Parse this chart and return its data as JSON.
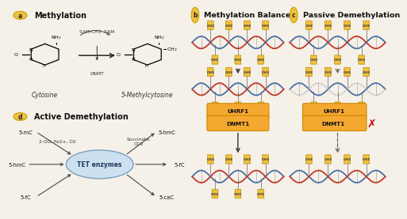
{
  "bg_color": "#f5f0e8",
  "dna_blue": "#4a6fa5",
  "dna_red": "#c0392b",
  "dna_gray": "#b8b8b8",
  "ch3_box_color": "#f0c040",
  "ch3_text": "CH3",
  "label_circle_color": "#f0c040",
  "label_circle_edge": "#c8a000",
  "orange_box_color": "#f5a830",
  "orange_box_edge": "#cc8800",
  "cross_color": "#cc0000",
  "panel_a_title": "Methylation",
  "panel_b_title": "Methylation Balance",
  "panel_c_title": "Passive Demethylation",
  "panel_d_title": "Active Demethylation",
  "cytosine_label": "Cytosine",
  "product_label": "5-Methylcytosine",
  "sam_label": "SAM-CH3  SAM",
  "dnmt_label": "DNMT",
  "tet_label": "TET enzymes",
  "inp_labels": [
    "5-mC",
    "5-hmC",
    "5-fC"
  ],
  "out_labels": [
    "5-hmC",
    "5-fC",
    "5-caC"
  ],
  "cofactor_left": "2-OG, Fe2+, O2",
  "cofactor_right": "Succinate,\nCO2",
  "uhrf1_label": "UHRF1",
  "dnmt1_label": "DNMT1"
}
